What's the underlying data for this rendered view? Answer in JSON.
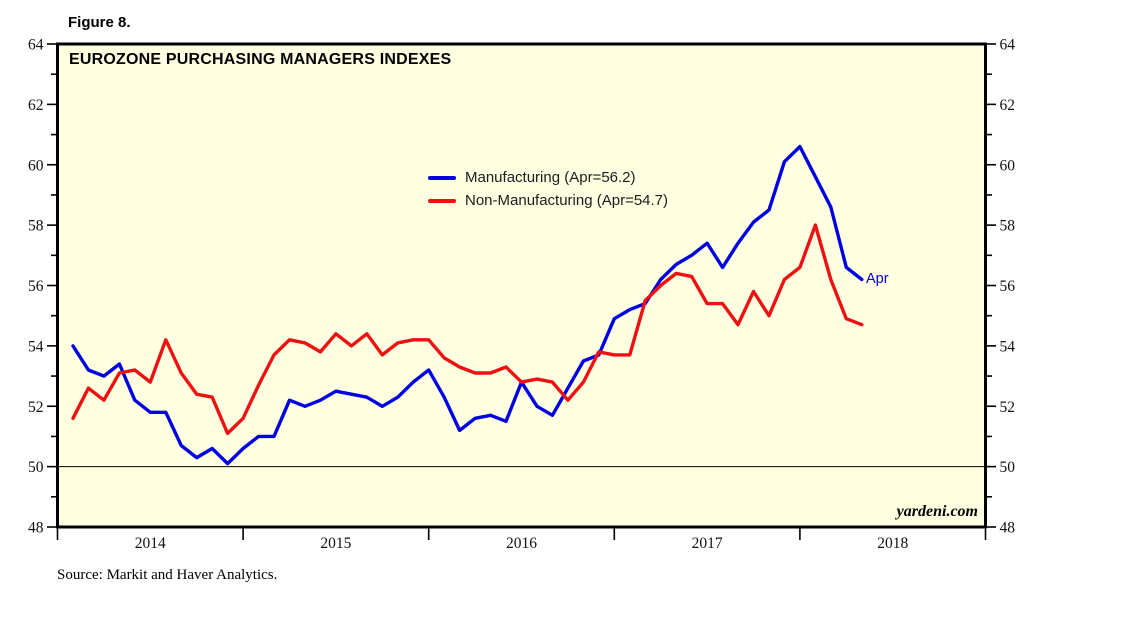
{
  "figure_label": "Figure 8.",
  "chart_title": "EUROZONE PURCHASING MANAGERS INDEXES",
  "watermark": "yardeni.com",
  "source_note": "Source: Markit and Haver Analytics.",
  "annotation": {
    "text": "Apr",
    "color": "#0000e0"
  },
  "colors": {
    "page_background": "#ffffff",
    "plot_background": "#ffffe2",
    "axis": "#000000",
    "manufacturing": "#0000e0",
    "non_manufacturing": "#ee1111"
  },
  "chart_data": {
    "type": "line",
    "title": "EUROZONE PURCHASING MANAGERS INDEXES",
    "x_unit": "monthly",
    "x_start": "2014-01",
    "x_end": "2018-04",
    "x_axis_span_years": [
      "2014-01",
      "2019-01"
    ],
    "year_labels": [
      "2014",
      "2015",
      "2016",
      "2017",
      "2018"
    ],
    "ylim": [
      48,
      64
    ],
    "ytick_step": 2,
    "ytick_minor_step": 1,
    "yticks_both_sides": true,
    "reference_line": 50,
    "grid": false,
    "legend_position": "top-center",
    "series": [
      {
        "id": "manufacturing",
        "name": "Manufacturing (Apr=56.2)",
        "color": "#0000e0",
        "last_label": "Apr",
        "values": [
          54.0,
          53.2,
          53.0,
          53.4,
          52.2,
          51.8,
          51.8,
          50.7,
          50.3,
          50.6,
          50.1,
          50.6,
          51.0,
          51.0,
          52.2,
          52.0,
          52.2,
          52.5,
          52.4,
          52.3,
          52.0,
          52.3,
          52.8,
          53.2,
          52.3,
          51.2,
          51.6,
          51.7,
          51.5,
          52.8,
          52.0,
          51.7,
          52.6,
          53.5,
          53.7,
          54.9,
          55.2,
          55.4,
          56.2,
          56.7,
          57.0,
          57.4,
          56.6,
          57.4,
          58.1,
          58.5,
          60.1,
          60.6,
          59.6,
          58.6,
          56.6,
          56.2
        ]
      },
      {
        "id": "non-manufacturing",
        "name": "Non-Manufacturing (Apr=54.7)",
        "color": "#ee1111",
        "values": [
          51.6,
          52.6,
          52.2,
          53.1,
          53.2,
          52.8,
          54.2,
          53.1,
          52.4,
          52.3,
          51.1,
          51.6,
          52.7,
          53.7,
          54.2,
          54.1,
          53.8,
          54.4,
          54.0,
          54.4,
          53.7,
          54.1,
          54.2,
          54.2,
          53.6,
          53.3,
          53.1,
          53.1,
          53.3,
          52.8,
          52.9,
          52.8,
          52.2,
          52.8,
          53.8,
          53.7,
          53.7,
          55.5,
          56.0,
          56.4,
          56.3,
          55.4,
          55.4,
          54.7,
          55.8,
          55.0,
          56.2,
          56.6,
          58.0,
          56.2,
          54.9,
          54.7
        ]
      }
    ]
  }
}
